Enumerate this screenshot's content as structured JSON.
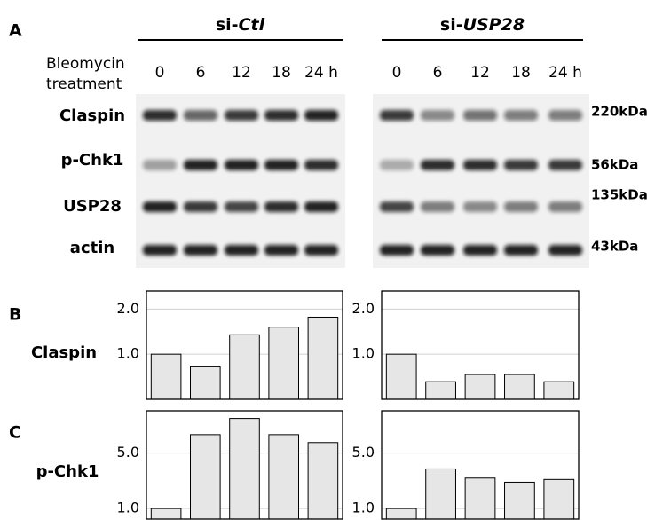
{
  "panel_labels": [
    "A",
    "B",
    "C"
  ],
  "blot": {
    "groups": [
      {
        "prefix": "si-",
        "gene": "Ctl",
        "time_points": [
          "0",
          "6",
          "12",
          "18",
          "24 h"
        ]
      },
      {
        "prefix": "si-",
        "gene": "USP28",
        "time_points": [
          "0",
          "6",
          "12",
          "18",
          "24 h"
        ]
      }
    ],
    "treatment_label": [
      "Bleomycin",
      "treatment"
    ],
    "rows": [
      {
        "label": "Claspin",
        "size": "220kDa"
      },
      {
        "label": "p-Chk1",
        "size": "56kDa"
      },
      {
        "label": "USP28",
        "size": "135kDa"
      },
      {
        "label": "actin",
        "size": "43kDa"
      }
    ]
  },
  "chart_data": [
    {
      "type": "bar",
      "ylabel": "Claspin",
      "values": [
        1.0,
        0.72,
        1.43,
        1.6,
        1.82
      ],
      "color": "#e6e6e6",
      "ylim": [
        0,
        2.4
      ],
      "yticks": [
        {
          "value": 1,
          "label": "1.0"
        },
        {
          "value": 2,
          "label": "2.0"
        }
      ],
      "grid": true
    },
    {
      "type": "bar",
      "values": [
        1.0,
        0.39,
        0.55,
        0.55,
        0.39
      ],
      "color": "#e6e6e6",
      "ylim": [
        0,
        2.4
      ],
      "yticks": [
        {
          "value": 1,
          "label": "1.0"
        },
        {
          "value": 2,
          "label": "2.0"
        }
      ],
      "grid": true
    },
    {
      "type": "bar",
      "ylabel": "p-Chk1",
      "values": [
        1.0,
        6.33,
        7.5,
        6.33,
        5.76
      ],
      "color": "#e6e6e6",
      "ylim": [
        0.24,
        8.05
      ],
      "yticks": [
        {
          "value": 1,
          "label": "1.0"
        },
        {
          "value": 5,
          "label": "5.0"
        }
      ],
      "grid": true
    },
    {
      "type": "bar",
      "values": [
        1.0,
        3.86,
        3.2,
        2.9,
        3.1
      ],
      "color": "#e6e6e6",
      "ylim": [
        0.24,
        8.05
      ],
      "yticks": [
        {
          "value": 1,
          "label": "1.0"
        },
        {
          "value": 5,
          "label": "5.0"
        }
      ],
      "grid": true
    }
  ]
}
